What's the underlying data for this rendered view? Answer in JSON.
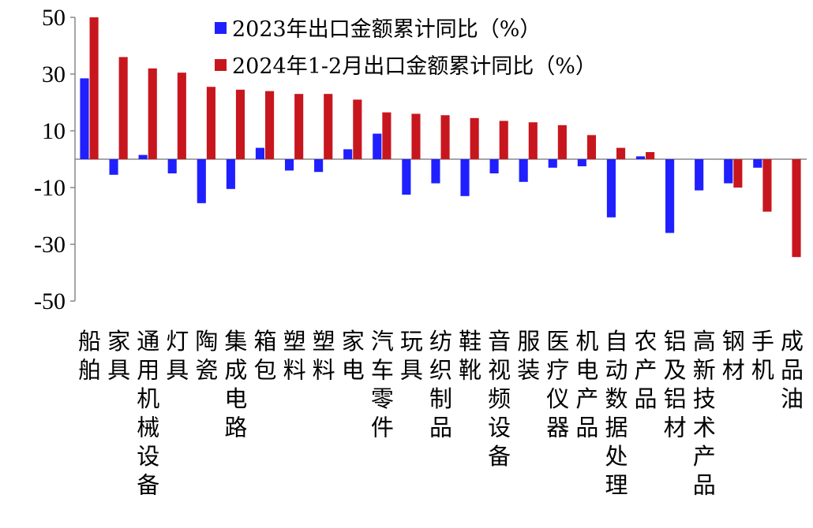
{
  "chart_data": {
    "type": "bar",
    "title": "",
    "xlabel": "",
    "ylabel": "",
    "ylim": [
      -50,
      50
    ],
    "yticks": [
      50,
      30,
      10,
      -10,
      -30,
      -50
    ],
    "grid": false,
    "legend_position": "top",
    "categories": [
      "船舶",
      "家具",
      "通用机械设备",
      "灯具",
      "陶瓷",
      "集成电路",
      "箱包",
      "塑料",
      "塑料",
      "家电",
      "汽车零件",
      "玩具",
      "纺织制品",
      "鞋靴",
      "音视频设备",
      "服装",
      "医疗仪器",
      "机电产品",
      "自动数据处理",
      "农产品",
      "铝及铝材",
      "高新技术产品",
      "钢材",
      "手机",
      "成品油"
    ],
    "series": [
      {
        "name": "2023年出口金额累计同比（%）",
        "color": "#1f1fff",
        "values": [
          28.5,
          -5.5,
          1.5,
          -5,
          -15.5,
          -10.5,
          4,
          -4,
          -4.5,
          3.5,
          9,
          -12.5,
          -8.5,
          -13,
          -5,
          -8,
          -3,
          -2.5,
          -20.5,
          1,
          -26,
          -11,
          -8.5,
          -3,
          0
        ]
      },
      {
        "name": "2024年1-2月出口金额累计同比（%）",
        "color": "#c8161e",
        "values": [
          50,
          36,
          32,
          30.5,
          25.5,
          24.5,
          24,
          23,
          23,
          21,
          16.5,
          16,
          15.5,
          14.5,
          13.5,
          13,
          12,
          8.5,
          4,
          2.5,
          0,
          0,
          -10,
          -18.5,
          -34.5
        ]
      }
    ]
  }
}
